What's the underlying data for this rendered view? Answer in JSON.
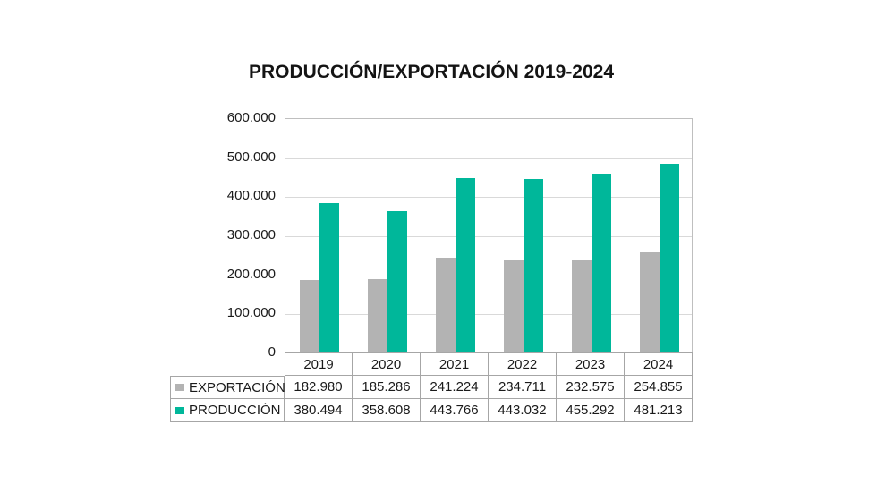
{
  "title": "PRODUCCIÓN/EXPORTACIÓN 2019-2024",
  "colors": {
    "exportacion": "#B3B3B3",
    "produccion": "#00B79A",
    "gridline": "#D9D9D9",
    "plot_border": "#BFBFBF",
    "table_border": "#A6A6A6",
    "text": "#1A1A1A",
    "background": "#FFFFFF"
  },
  "chart_data": {
    "type": "bar",
    "title": "PRODUCCIÓN/EXPORTACIÓN 2019-2024",
    "categories": [
      "2019",
      "2020",
      "2021",
      "2022",
      "2023",
      "2024"
    ],
    "series": [
      {
        "name": "EXPORTACIÓN",
        "color": "#B3B3B3",
        "values": [
          182980,
          185286,
          241224,
          234711,
          232575,
          254855
        ],
        "labels": [
          "182.980",
          "185.286",
          "241.224",
          "234.711",
          "232.575",
          "254.855"
        ]
      },
      {
        "name": "PRODUCCIÓN",
        "color": "#00B79A",
        "values": [
          380494,
          358608,
          443766,
          443032,
          455292,
          481213
        ],
        "labels": [
          "380.494",
          "358.608",
          "443.766",
          "443.032",
          "455.292",
          "481.213"
        ]
      }
    ],
    "xlabel": "",
    "ylabel": "",
    "ylim": [
      0,
      600000
    ],
    "ytick_interval": 100000,
    "yticks": [
      {
        "value": 0,
        "label": "0"
      },
      {
        "value": 100000,
        "label": "100.000"
      },
      {
        "value": 200000,
        "label": "200.000"
      },
      {
        "value": 300000,
        "label": "300.000"
      },
      {
        "value": 400000,
        "label": "400.000"
      },
      {
        "value": 500000,
        "label": "500.000"
      },
      {
        "value": 600000,
        "label": "600.000"
      }
    ],
    "grid": true,
    "legend_position": "data-table-left"
  }
}
